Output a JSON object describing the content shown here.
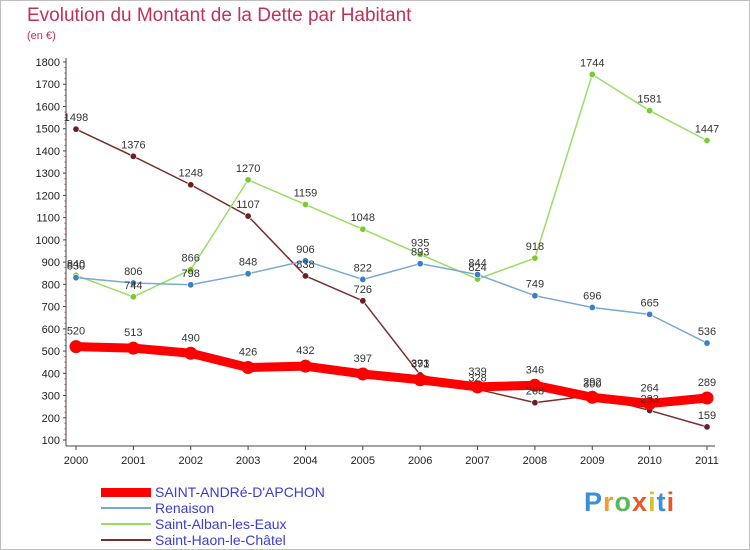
{
  "header": {
    "title": "Evolution du Montant de la Dette par Habitant",
    "unit": "(en €)"
  },
  "colors": {
    "title": "#c0315a",
    "axis": "#444444",
    "grid": "#dddddd",
    "legend_text": "#3b3bd9"
  },
  "logo": {
    "letters": [
      {
        "char": "P",
        "color": "#3a8fd8"
      },
      {
        "char": "r",
        "color": "#f0a030"
      },
      {
        "char": "o",
        "color": "#5cb85c"
      },
      {
        "char": "x",
        "color": "#e05a2a"
      },
      {
        "char": "i",
        "color": "#d8c030"
      },
      {
        "char": "t",
        "color": "#3a8fd8"
      },
      {
        "char": "i",
        "color": "#e05a2a"
      }
    ]
  },
  "chart_data": {
    "type": "line",
    "title": "Evolution du Montant de la Dette par Habitant",
    "ylabel": "(en €)",
    "x": [
      "2000",
      "2001",
      "2002",
      "2003",
      "2004",
      "2005",
      "2006",
      "2007",
      "2008",
      "2009",
      "2010",
      "2011"
    ],
    "ylim": [
      100,
      1800
    ],
    "yticks": [
      "100",
      "200",
      "300",
      "400",
      "500",
      "600",
      "700",
      "800",
      "900",
      "1000",
      "1100",
      "1200",
      "1300",
      "1400",
      "1500",
      "1600",
      "1700",
      "1800"
    ],
    "grid": false,
    "legend_position": "bottom-left",
    "series": [
      {
        "name": "SAINT-ANDRé-D'APCHON",
        "color": "#ff0000",
        "marker": "#ff0000",
        "width": 9,
        "values": [
          520,
          513,
          490,
          426,
          432,
          397,
          371,
          339,
          346,
          292,
          264,
          289
        ],
        "labels": [
          "520",
          "513",
          "490",
          "426",
          "432",
          "397",
          "371",
          "339",
          "346",
          "292",
          "264",
          "289"
        ]
      },
      {
        "name": "Renaison",
        "color": "#77a9d4",
        "marker": "#3b7fc4",
        "width": 1.5,
        "values": [
          830,
          806,
          798,
          848,
          906,
          822,
          893,
          844,
          749,
          696,
          665,
          536
        ],
        "labels": [
          "830",
          "806",
          "798",
          "848",
          "906",
          "822",
          "893",
          "844",
          "749",
          "696",
          "665",
          "536"
        ]
      },
      {
        "name": "Saint-Alban-les-Eaux",
        "color": "#99dd66",
        "marker": "#77cc33",
        "width": 1.5,
        "values": [
          840,
          744,
          866,
          1270,
          1159,
          1048,
          935,
          824,
          918,
          1744,
          1581,
          1447
        ],
        "labels": [
          "840",
          "744",
          "866",
          "1270",
          "1159",
          "1048",
          "935",
          "824",
          "918",
          "1744",
          "1581",
          "1447"
        ]
      },
      {
        "name": "Saint-Haon-le-Châtel",
        "color": "#7a2e2e",
        "marker": "#6b2020",
        "width": 1.5,
        "values": [
          1498,
          1376,
          1248,
          1107,
          838,
          726,
          393,
          328,
          268,
          300,
          233,
          159
        ],
        "labels": [
          "1498",
          "1376",
          "1248",
          "1107",
          "838",
          "726",
          "393",
          "328",
          "268",
          "300",
          "233",
          "159"
        ]
      }
    ]
  }
}
